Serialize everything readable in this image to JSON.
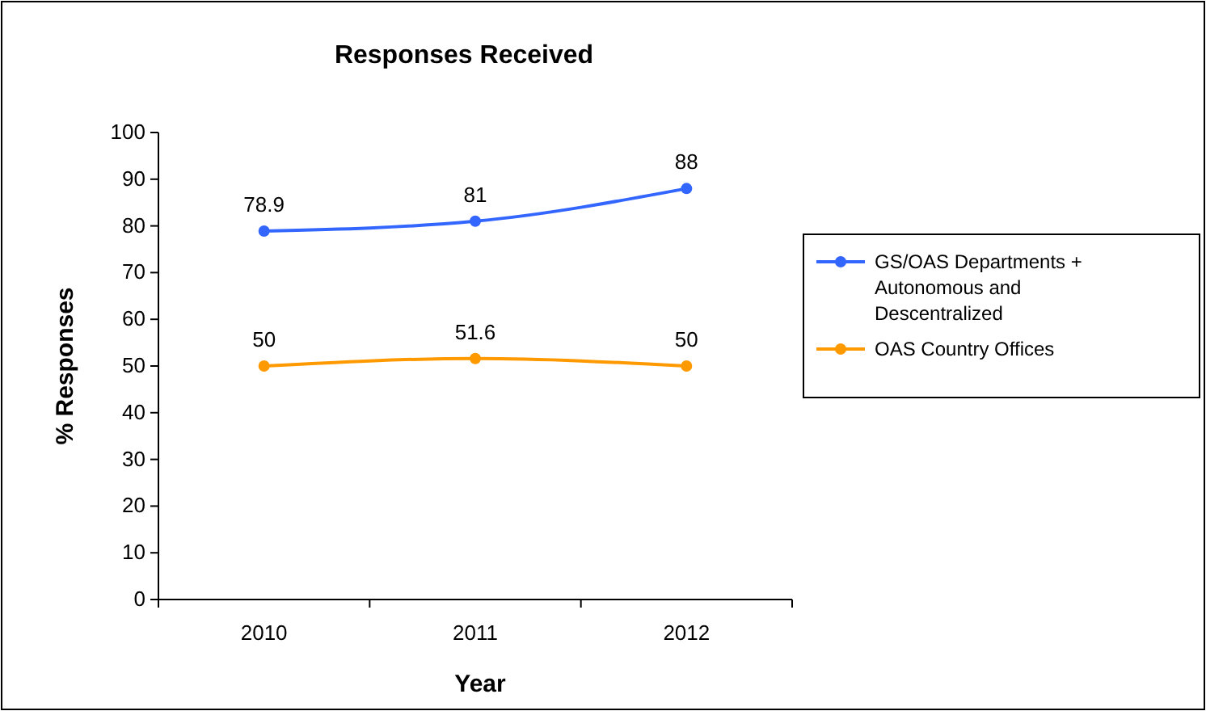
{
  "chart_data": {
    "type": "line",
    "title": "Responses Received",
    "xlabel": "Year",
    "ylabel": "% Responses",
    "categories": [
      "2010",
      "2011",
      "2012"
    ],
    "series": [
      {
        "name": "GS/OAS Departments + Autonomous and Descentralized",
        "color": "#3366ff",
        "values": [
          78.9,
          81,
          88
        ]
      },
      {
        "name": "OAS Country Offices",
        "color": "#ff9900",
        "values": [
          50,
          51.6,
          50
        ]
      }
    ],
    "ylim": [
      0,
      100
    ],
    "yticks": [
      0,
      10,
      20,
      30,
      40,
      50,
      60,
      70,
      80,
      90,
      100
    ],
    "grid": false,
    "legend": "right",
    "marker": "circle",
    "line_style": "solid",
    "data_labels": true
  }
}
